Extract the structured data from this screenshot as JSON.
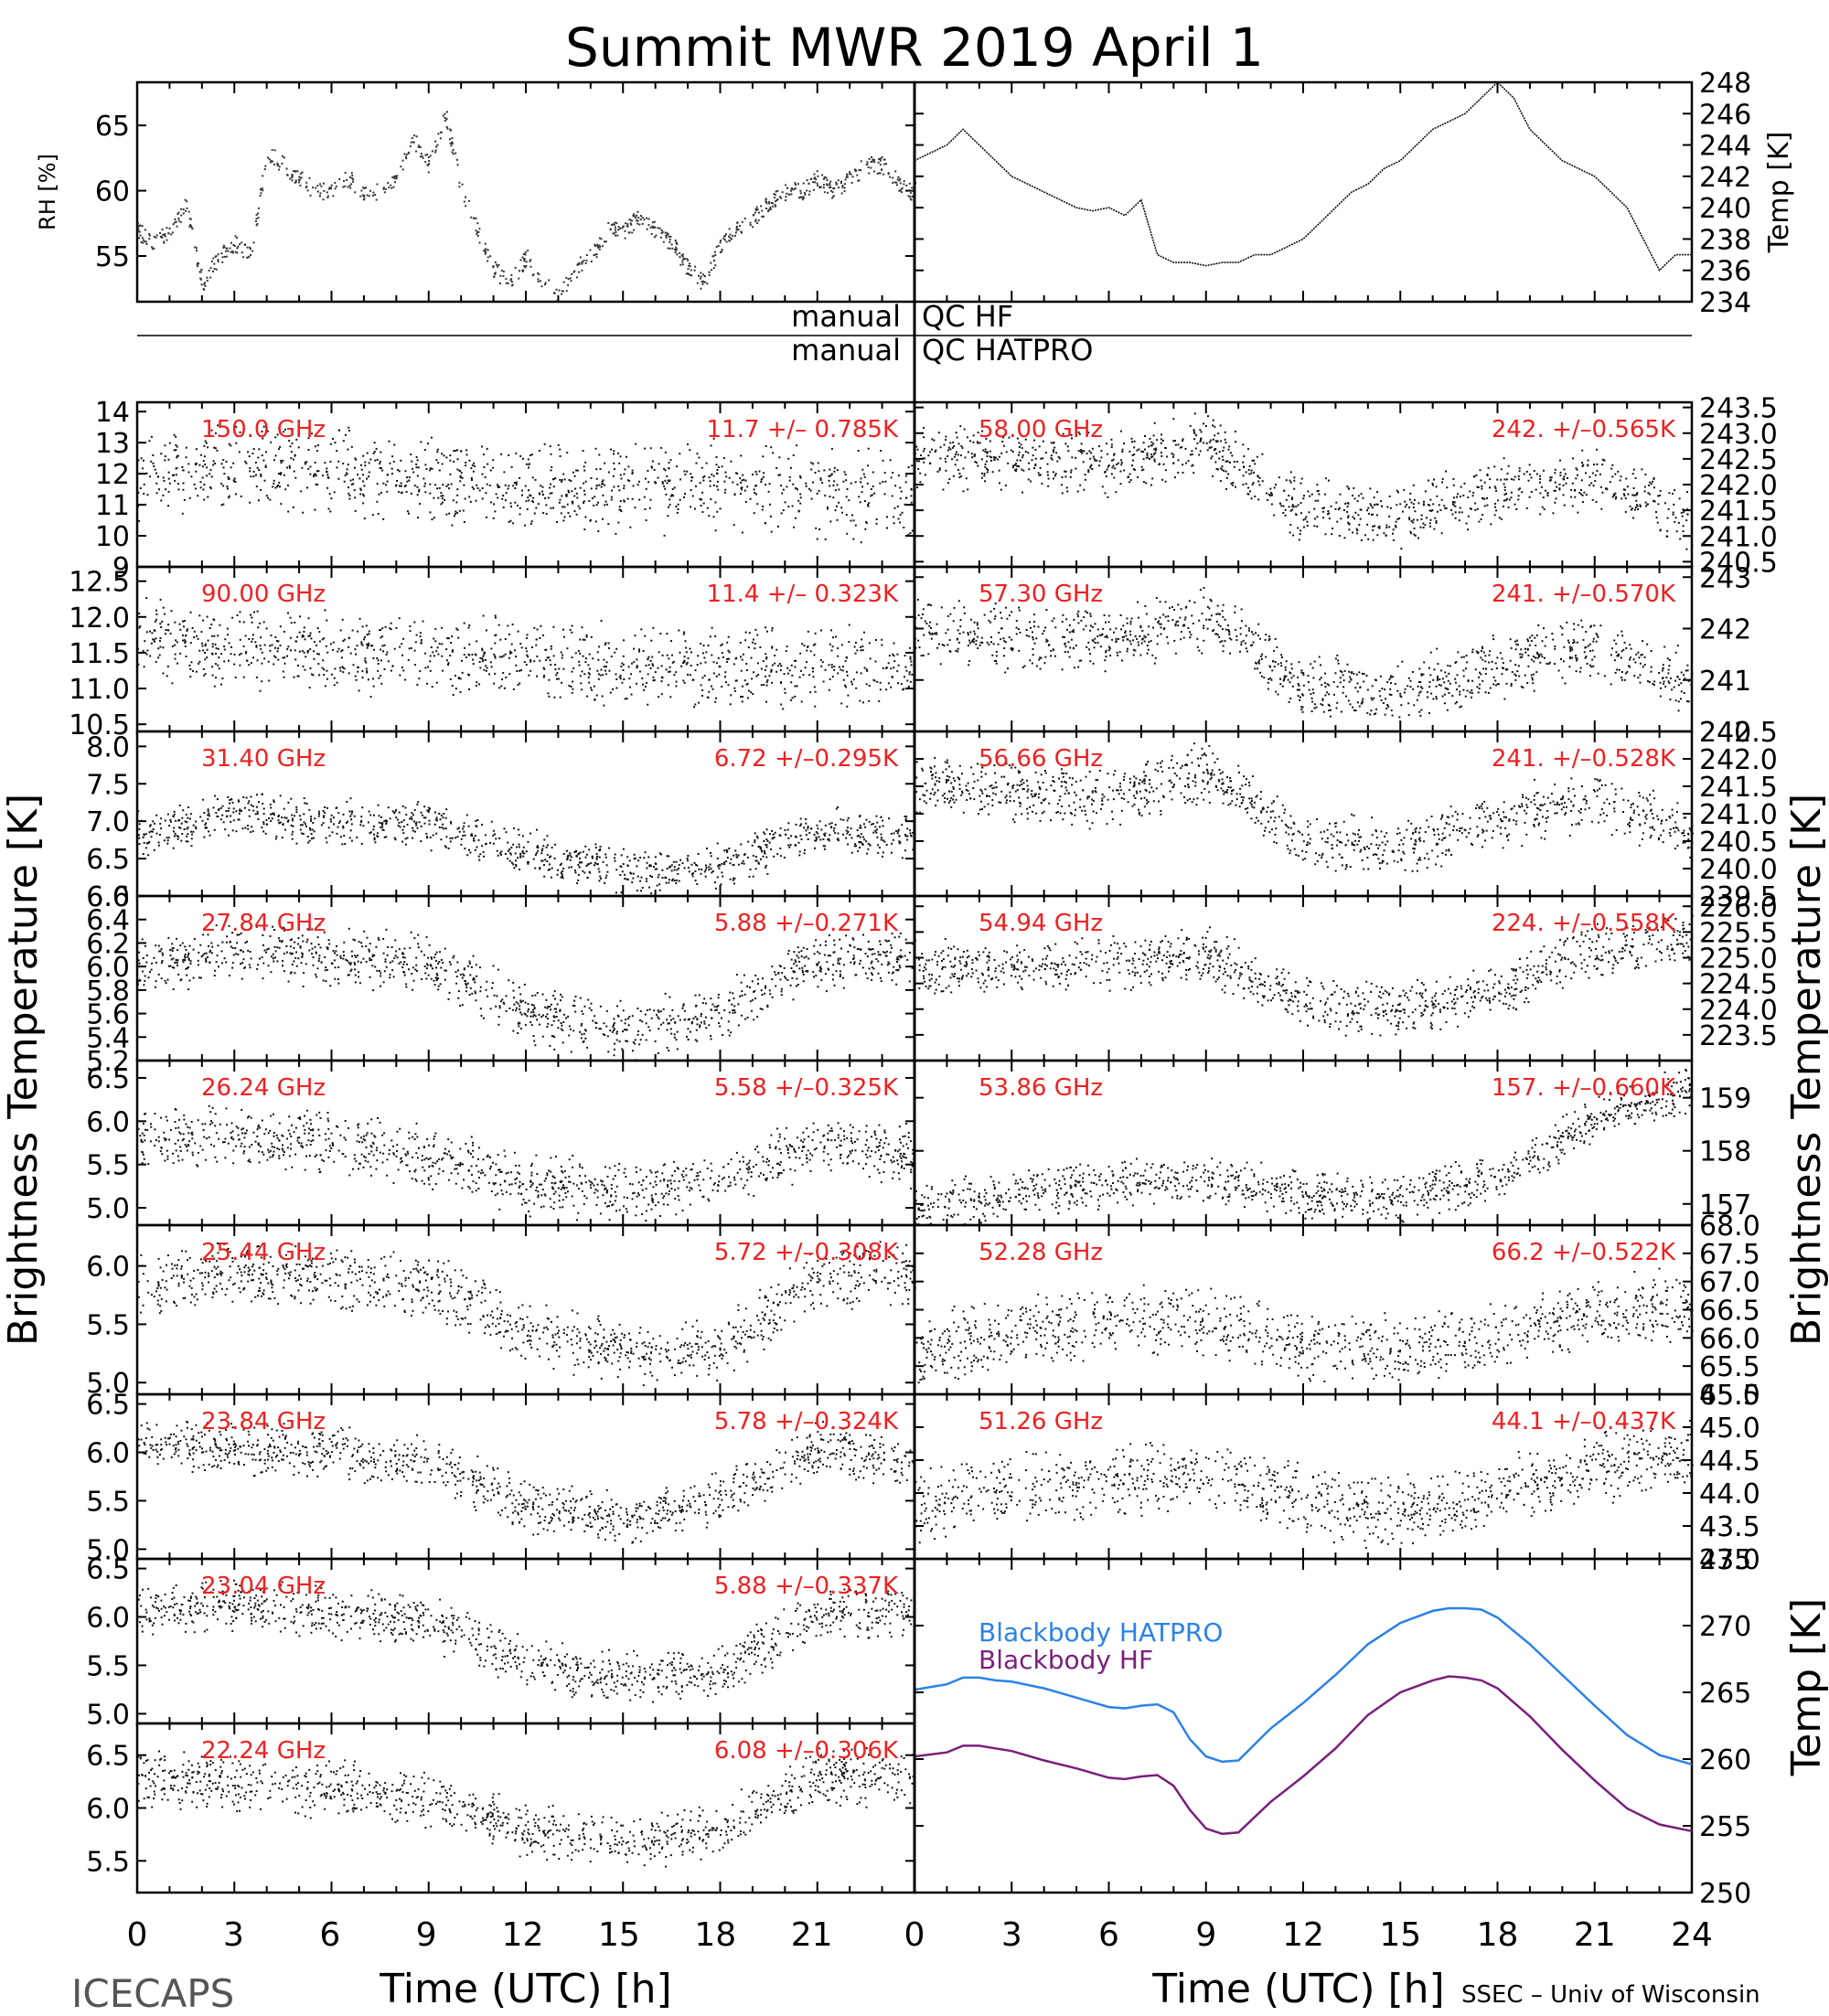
{
  "page": {
    "title": "Summit MWR 2019 April  1",
    "footer_left": "ICECAPS",
    "footer_right": "SSEC – Univ of Wisconsin"
  },
  "labels": {
    "rh_axis": "RH [%]",
    "temp_axis": "Temp [K]",
    "qc_hf_left": "manual",
    "qc_hf_right": "QC  HF",
    "qc_hatpro_left": "manual",
    "qc_hatpro_right": "QC  HATPRO",
    "tb_left_axis": "Brightness  Temperature  [K]",
    "tb_right_axis": "Brightness  Temperature  [K]",
    "bb_temp_axis": "Temp  [K]",
    "x_axis_left": "Time  (UTC)  [h]",
    "x_axis_right": "Time  (UTC)  [h]"
  },
  "x_ticks": [
    "0",
    "3",
    "6",
    "9",
    "12",
    "15",
    "18",
    "21",
    "0",
    "3",
    "6",
    "9",
    "12",
    "15",
    "18",
    "21",
    "24"
  ],
  "chart_data": [
    {
      "type": "scatter",
      "panel": "rh",
      "ylabel": "RH [%]",
      "xlim": [
        0,
        24
      ],
      "ylim": [
        51.5,
        68.3
      ],
      "yticks": [
        "55",
        "60",
        "65"
      ],
      "x": [
        0,
        0.5,
        1,
        1.5,
        2,
        2.5,
        3,
        3.5,
        3.8,
        4,
        4.5,
        5,
        5.5,
        6,
        6.5,
        7,
        7.5,
        8,
        8.5,
        9,
        9.5,
        10,
        10.5,
        11,
        11.5,
        12,
        12.5,
        13,
        13.5,
        14,
        14.5,
        15,
        15.5,
        16,
        16.5,
        17,
        17.5,
        18,
        18.5,
        19,
        19.5,
        20,
        20.5,
        21,
        21.5,
        22,
        22.5,
        23,
        23.7
      ],
      "y": [
        57,
        56,
        57,
        59,
        53,
        55,
        56,
        55,
        60,
        63,
        62,
        61,
        60,
        60,
        61,
        60,
        60,
        61,
        64,
        62,
        66,
        60,
        57,
        54,
        53,
        55,
        53,
        52,
        54,
        55,
        57,
        57,
        58,
        57,
        56,
        54,
        53,
        56,
        57,
        58,
        59,
        60,
        60,
        61,
        60,
        61,
        62,
        62,
        60
      ]
    },
    {
      "type": "line",
      "panel": "temp",
      "ylabel": "Temp [K]",
      "xlim": [
        0,
        24
      ],
      "ylim": [
        234,
        248
      ],
      "yticks": [
        "234",
        "236",
        "238",
        "240",
        "242",
        "244",
        "246",
        "248"
      ],
      "x": [
        0,
        0.5,
        1,
        1.5,
        2,
        2.5,
        3,
        3.5,
        4,
        4.5,
        5,
        5.5,
        6,
        6.5,
        7,
        7.5,
        8,
        8.5,
        9,
        9.5,
        10,
        10.5,
        11,
        11.5,
        12,
        12.5,
        13,
        13.5,
        14,
        14.5,
        15,
        15.5,
        16,
        16.5,
        17,
        17.5,
        18,
        18.5,
        19,
        19.5,
        20,
        20.5,
        21,
        21.5,
        22,
        22.5,
        23,
        23.5,
        24
      ],
      "y": [
        243,
        243.5,
        244,
        245,
        244,
        243,
        242,
        241.5,
        241,
        240.5,
        240,
        239.8,
        240,
        239.5,
        240.5,
        237,
        236.5,
        236.5,
        236.3,
        236.5,
        236.5,
        237,
        237,
        237.5,
        238,
        239,
        240,
        241,
        241.5,
        242.5,
        243,
        244,
        245,
        245.5,
        246,
        247,
        248,
        247,
        245,
        244,
        243,
        242.5,
        242,
        241,
        240,
        238,
        236,
        237,
        237
      ]
    },
    {
      "type": "scatter",
      "panel": "ch-150",
      "side": "left",
      "freq": "150.0 GHz",
      "stat": "11.7  +/– 0.785K",
      "ylim": [
        9,
        14.3
      ],
      "yticks": [
        "9",
        "10",
        "11",
        "12",
        "13",
        "14"
      ],
      "x": [
        0,
        3,
        6,
        9,
        12,
        15,
        18,
        21,
        24
      ],
      "y": [
        11.9,
        12.3,
        12.1,
        11.9,
        11.6,
        11.5,
        11.7,
        11.4,
        11.3
      ],
      "spread": 1.6
    },
    {
      "type": "scatter",
      "panel": "ch-90",
      "side": "left",
      "freq": "90.00 GHz",
      "stat": "11.4  +/– 0.323K",
      "ylim": [
        10.4,
        12.7
      ],
      "yticks": [
        "10.5",
        "11.0",
        "11.5",
        "12.0",
        "12.5"
      ],
      "x": [
        0,
        3,
        6,
        9,
        12,
        15,
        18,
        21,
        24
      ],
      "y": [
        11.7,
        11.6,
        11.5,
        11.5,
        11.4,
        11.3,
        11.3,
        11.3,
        11.4
      ],
      "spread": 0.65
    },
    {
      "type": "scatter",
      "panel": "ch-31.40",
      "side": "left",
      "freq": "31.40 GHz",
      "stat": "6.72  +/–0.295K",
      "ylim": [
        6.0,
        8.2
      ],
      "yticks": [
        "6.0",
        "6.5",
        "7.0",
        "7.5",
        "8.0"
      ],
      "x": [
        0,
        3,
        6,
        9,
        12,
        15,
        18,
        21,
        24
      ],
      "y": [
        6.85,
        7.1,
        7.0,
        6.95,
        6.6,
        6.35,
        6.4,
        6.9,
        6.8
      ],
      "spread": 0.35
    },
    {
      "type": "scatter",
      "panel": "ch-27.84",
      "side": "left",
      "freq": "27.84 GHz",
      "stat": "5.88  +/–0.271K",
      "ylim": [
        5.2,
        6.6
      ],
      "yticks": [
        "5.2",
        "5.4",
        "5.6",
        "5.8",
        "6.0",
        "6.2",
        "6.4",
        "6.6"
      ],
      "x": [
        0,
        3,
        6,
        9,
        12,
        15,
        18,
        21,
        24
      ],
      "y": [
        6.0,
        6.15,
        6.1,
        6.05,
        5.6,
        5.45,
        5.6,
        6.05,
        6.1
      ],
      "spread": 0.28
    },
    {
      "type": "scatter",
      "panel": "ch-26.24",
      "side": "left",
      "freq": "26.24 GHz",
      "stat": "5.58  +/–0.325K",
      "ylim": [
        4.8,
        6.7
      ],
      "yticks": [
        "5.0",
        "5.5",
        "6.0",
        "6.5"
      ],
      "x": [
        0,
        3,
        6,
        9,
        12,
        15,
        18,
        21,
        24
      ],
      "y": [
        5.8,
        5.85,
        5.75,
        5.6,
        5.3,
        5.2,
        5.35,
        5.75,
        5.6
      ],
      "spread": 0.4
    },
    {
      "type": "scatter",
      "panel": "ch-25.44",
      "side": "left",
      "freq": "25.44 GHz",
      "stat": "5.72  +/–0.308K",
      "ylim": [
        4.9,
        6.35
      ],
      "yticks": [
        "5.0",
        "5.5",
        "6.0"
      ],
      "x": [
        0,
        3,
        6,
        9,
        12,
        15,
        18,
        21,
        24
      ],
      "y": [
        5.85,
        5.95,
        5.9,
        5.85,
        5.45,
        5.25,
        5.3,
        5.9,
        5.95
      ],
      "spread": 0.3
    },
    {
      "type": "scatter",
      "panel": "ch-23.84",
      "side": "left",
      "freq": "23.84 GHz",
      "stat": "5.78  +/–0.324K",
      "ylim": [
        4.9,
        6.6
      ],
      "yticks": [
        "5.0",
        "5.5",
        "6.0",
        "6.5"
      ],
      "x": [
        0,
        3,
        6,
        9,
        12,
        15,
        18,
        21,
        24
      ],
      "y": [
        6.1,
        6.05,
        6.0,
        5.9,
        5.45,
        5.3,
        5.55,
        6.05,
        5.9
      ],
      "spread": 0.3
    },
    {
      "type": "scatter",
      "panel": "ch-23.04",
      "side": "left",
      "freq": "23.04 GHz",
      "stat": "5.88  +/–0.337K",
      "ylim": [
        4.9,
        6.6
      ],
      "yticks": [
        "5.0",
        "5.5",
        "6.0",
        "6.5"
      ],
      "x": [
        0,
        3,
        6,
        9,
        12,
        15,
        18,
        21,
        24
      ],
      "y": [
        6.1,
        6.15,
        6.05,
        5.95,
        5.55,
        5.35,
        5.45,
        6.05,
        6.05
      ],
      "spread": 0.3
    },
    {
      "type": "scatter",
      "panel": "ch-22.24",
      "side": "left",
      "freq": "22.24 GHz",
      "stat": "6.08  +/–0.306K",
      "ylim": [
        5.2,
        6.8
      ],
      "yticks": [
        "5.5",
        "6.0",
        "6.5"
      ],
      "x": [
        0,
        3,
        6,
        9,
        12,
        15,
        18,
        21,
        24
      ],
      "y": [
        6.3,
        6.25,
        6.2,
        6.1,
        5.8,
        5.65,
        5.8,
        6.3,
        6.3
      ],
      "spread": 0.3
    },
    {
      "type": "scatter",
      "panel": "ch-58.00",
      "side": "right",
      "freq": "58.00 GHz",
      "stat": "242.  +/–0.565K",
      "ylim": [
        240.4,
        243.6
      ],
      "yticks": [
        "240.5",
        "241.0",
        "241.5",
        "242.0",
        "242.5",
        "243.0",
        "243.5"
      ],
      "x": [
        0,
        3,
        6,
        9,
        12,
        15,
        18,
        21,
        24
      ],
      "y": [
        242.6,
        242.5,
        242.4,
        242.8,
        241.5,
        241.4,
        241.9,
        242.2,
        241.3
      ],
      "spread": 0.7
    },
    {
      "type": "scatter",
      "panel": "ch-57.30",
      "side": "right",
      "freq": "57.30 GHz",
      "stat": "241.  +/–0.570K",
      "ylim": [
        240,
        243.2
      ],
      "yticks": [
        "240",
        "241",
        "242",
        "243"
      ],
      "x": [
        0,
        3,
        6,
        9,
        12,
        15,
        18,
        21,
        24
      ],
      "y": [
        242.0,
        241.8,
        241.8,
        242.2,
        240.9,
        240.8,
        241.3,
        241.7,
        240.9
      ],
      "spread": 0.7
    },
    {
      "type": "scatter",
      "panel": "ch-56.66",
      "side": "right",
      "freq": "56.66 GHz",
      "stat": "241.  +/–0.528K",
      "ylim": [
        239.5,
        242.5
      ],
      "yticks": [
        "239.5",
        "240.0",
        "240.5",
        "241.0",
        "241.5",
        "242.0",
        "242.5"
      ],
      "x": [
        0,
        3,
        6,
        9,
        12,
        15,
        18,
        21,
        24
      ],
      "y": [
        241.6,
        241.4,
        241.3,
        241.8,
        240.5,
        240.4,
        240.9,
        241.3,
        240.6
      ],
      "spread": 0.6
    },
    {
      "type": "scatter",
      "panel": "ch-54.94",
      "side": "right",
      "freq": "54.94 GHz",
      "stat": "224.  +/–0.558K",
      "ylim": [
        223,
        226.2
      ],
      "yticks": [
        "223.5",
        "224.0",
        "224.5",
        "225.0",
        "225.5",
        "226.0"
      ],
      "x": [
        0,
        3,
        6,
        9,
        12,
        15,
        18,
        21,
        24
      ],
      "y": [
        224.8,
        224.8,
        224.9,
        225.1,
        224.1,
        224.0,
        224.4,
        225.2,
        225.4
      ],
      "spread": 0.6
    },
    {
      "type": "scatter",
      "panel": "ch-53.86",
      "side": "right",
      "freq": "53.86 GHz",
      "stat": "157.  +/–0.660K",
      "ylim": [
        156.6,
        159.7
      ],
      "yticks": [
        "157",
        "158",
        "159"
      ],
      "x": [
        0,
        3,
        6,
        9,
        12,
        15,
        18,
        21,
        24
      ],
      "y": [
        156.9,
        157.2,
        157.4,
        157.5,
        157.2,
        157.1,
        157.5,
        158.6,
        159.2
      ],
      "spread": 0.5
    },
    {
      "type": "scatter",
      "panel": "ch-52.28",
      "side": "right",
      "freq": "52.28 GHz",
      "stat": "66.2  +/–0.522K",
      "ylim": [
        65,
        68
      ],
      "yticks": [
        "65.0",
        "65.5",
        "66.0",
        "66.5",
        "67.0",
        "67.5",
        "68.0"
      ],
      "x": [
        0,
        3,
        6,
        9,
        12,
        15,
        18,
        21,
        24
      ],
      "y": [
        65.8,
        66.1,
        66.3,
        66.3,
        65.9,
        65.8,
        66.0,
        66.5,
        66.6
      ],
      "spread": 0.7
    },
    {
      "type": "scatter",
      "panel": "ch-51.26",
      "side": "right",
      "freq": "51.26 GHz",
      "stat": "44.1  +/–0.437K",
      "ylim": [
        43,
        45.5
      ],
      "yticks": [
        "43.0",
        "43.5",
        "44.0",
        "44.5",
        "45.0",
        "45.5"
      ],
      "x": [
        0,
        3,
        6,
        9,
        12,
        15,
        18,
        21,
        24
      ],
      "y": [
        43.8,
        44.1,
        44.2,
        44.3,
        43.9,
        43.7,
        44.0,
        44.4,
        44.6
      ],
      "spread": 0.6
    },
    {
      "type": "line",
      "panel": "blackbody",
      "ylabel": "Temp [K]",
      "xlim": [
        0,
        24
      ],
      "ylim": [
        250,
        275
      ],
      "yticks": [
        "250",
        "255",
        "260",
        "265",
        "270",
        "275"
      ],
      "x": [
        0,
        1,
        1.5,
        2,
        2.5,
        3,
        4,
        5,
        6,
        6.5,
        7,
        7.5,
        8,
        8.5,
        9,
        9.5,
        10,
        11,
        12,
        13,
        14,
        15,
        16,
        16.5,
        17,
        17.5,
        18,
        19,
        20,
        21,
        22,
        23,
        24
      ],
      "series": [
        {
          "name": "Blackbody  HATPRO",
          "color": "#2b82e8",
          "values": [
            265.2,
            265.6,
            266.1,
            266.1,
            265.9,
            265.8,
            265.3,
            264.6,
            263.9,
            263.8,
            264.0,
            264.1,
            263.5,
            261.5,
            260.2,
            259.8,
            259.9,
            262.3,
            264.2,
            266.3,
            268.6,
            270.2,
            271.1,
            271.3,
            271.3,
            271.2,
            270.6,
            268.6,
            266.3,
            264.0,
            261.8,
            260.3,
            259.6
          ]
        },
        {
          "name": "Blackbody  HF",
          "color": "#7a1f7c",
          "values": [
            260.2,
            260.5,
            261.0,
            261.0,
            260.8,
            260.6,
            259.9,
            259.3,
            258.6,
            258.5,
            258.7,
            258.8,
            258.0,
            256.2,
            254.8,
            254.4,
            254.5,
            256.8,
            258.7,
            260.8,
            263.3,
            265.0,
            265.9,
            266.2,
            266.1,
            265.9,
            265.3,
            263.2,
            260.7,
            258.4,
            256.3,
            255.1,
            254.6
          ]
        }
      ]
    }
  ]
}
